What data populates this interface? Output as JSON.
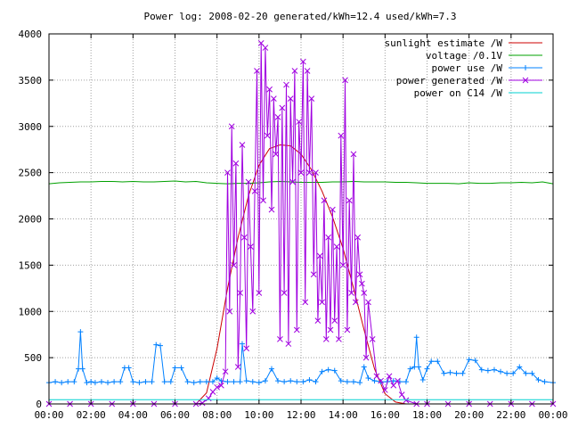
{
  "chart_data": {
    "type": "line",
    "title": "Power log: 2008-02-20 generated/kWh=12.4 used/kWh=7.3",
    "xlabel": "",
    "ylabel": "",
    "xlim": [
      0,
      24
    ],
    "ylim": [
      0,
      4000
    ],
    "x_ticks": [
      "00:00",
      "02:00",
      "04:00",
      "06:00",
      "08:00",
      "10:00",
      "12:00",
      "14:00",
      "16:00",
      "18:00",
      "20:00",
      "22:00",
      "00:00"
    ],
    "y_ticks": [
      "0",
      "500",
      "1000",
      "1500",
      "2000",
      "2500",
      "3000",
      "3500",
      "4000"
    ],
    "y_tick_values": [
      0,
      500,
      1000,
      1500,
      2000,
      2500,
      3000,
      3500,
      4000
    ],
    "grid": true,
    "legend_position": "top-right",
    "series": [
      {
        "name": "sunlight estimate /W",
        "color": "#cc0000",
        "marker": "none",
        "x": [
          0,
          7.0,
          7.5,
          8.0,
          8.5,
          9.0,
          9.5,
          10.0,
          10.5,
          11.0,
          11.5,
          12.0,
          12.5,
          13.0,
          13.5,
          14.0,
          14.5,
          15.0,
          15.5,
          16.0,
          16.5,
          17.0,
          24
        ],
        "y": [
          0,
          0,
          120,
          600,
          1250,
          1800,
          2250,
          2580,
          2760,
          2800,
          2790,
          2700,
          2530,
          2300,
          2020,
          1680,
          1250,
          800,
          380,
          110,
          20,
          0,
          0
        ]
      },
      {
        "name": "voltage /0.1V",
        "color": "#00a000",
        "marker": "none",
        "x": [
          0,
          0.5,
          1.0,
          1.5,
          2.0,
          2.5,
          3.0,
          3.5,
          4.0,
          4.5,
          5.0,
          5.5,
          6.0,
          6.5,
          7.0,
          7.5,
          8.0,
          8.5,
          9.0,
          9.5,
          10.0,
          10.5,
          11.0,
          11.5,
          12.0,
          12.5,
          13.0,
          13.5,
          14.0,
          14.5,
          15.0,
          15.5,
          16.0,
          16.5,
          17.0,
          17.5,
          18.0,
          18.5,
          19.0,
          19.5,
          20.0,
          20.5,
          21.0,
          21.5,
          22.0,
          22.5,
          23.0,
          23.5,
          24.0
        ],
        "y": [
          2380,
          2390,
          2395,
          2400,
          2400,
          2405,
          2405,
          2400,
          2405,
          2400,
          2400,
          2405,
          2410,
          2400,
          2405,
          2390,
          2385,
          2380,
          2385,
          2385,
          2390,
          2400,
          2405,
          2400,
          2395,
          2395,
          2395,
          2400,
          2400,
          2405,
          2400,
          2400,
          2400,
          2395,
          2395,
          2390,
          2385,
          2385,
          2385,
          2380,
          2390,
          2385,
          2385,
          2390,
          2390,
          2395,
          2390,
          2400,
          2380
        ]
      },
      {
        "name": "power use /W",
        "color": "#0080ff",
        "marker": "plus",
        "x": [
          0,
          0.3,
          0.6,
          0.9,
          1.2,
          1.4,
          1.5,
          1.6,
          1.8,
          2.0,
          2.2,
          2.5,
          2.8,
          3.1,
          3.4,
          3.6,
          3.8,
          4.0,
          4.3,
          4.6,
          4.9,
          5.1,
          5.3,
          5.5,
          5.8,
          6.0,
          6.3,
          6.6,
          6.9,
          7.2,
          7.5,
          7.8,
          8.0,
          8.2,
          8.5,
          8.8,
          9.1,
          9.2,
          9.4,
          9.7,
          10.0,
          10.3,
          10.6,
          10.9,
          11.2,
          11.5,
          11.8,
          12.1,
          12.4,
          12.7,
          13.0,
          13.3,
          13.6,
          13.9,
          14.2,
          14.5,
          14.8,
          15.0,
          15.2,
          15.5,
          15.8,
          16.1,
          16.4,
          16.7,
          17.0,
          17.2,
          17.4,
          17.5,
          17.6,
          17.8,
          18.0,
          18.2,
          18.5,
          18.8,
          19.1,
          19.4,
          19.7,
          20.0,
          20.3,
          20.6,
          20.9,
          21.2,
          21.5,
          21.8,
          22.1,
          22.4,
          22.7,
          23.0,
          23.3,
          23.6,
          24.0
        ],
        "y": [
          230,
          240,
          230,
          240,
          240,
          380,
          780,
          380,
          230,
          240,
          230,
          240,
          230,
          240,
          240,
          390,
          390,
          240,
          230,
          240,
          240,
          640,
          630,
          240,
          240,
          390,
          390,
          240,
          230,
          240,
          240,
          240,
          280,
          250,
          240,
          240,
          240,
          650,
          250,
          240,
          230,
          250,
          380,
          250,
          240,
          250,
          240,
          240,
          260,
          240,
          350,
          370,
          360,
          250,
          240,
          240,
          230,
          400,
          280,
          250,
          240,
          240,
          250,
          240,
          240,
          380,
          400,
          720,
          400,
          260,
          380,
          460,
          460,
          330,
          340,
          330,
          330,
          480,
          470,
          370,
          360,
          370,
          350,
          330,
          330,
          400,
          330,
          330,
          260,
          240,
          230
        ]
      },
      {
        "name": "power generated /W",
        "color": "#a000e0",
        "marker": "cross",
        "x": [
          0,
          1,
          2,
          3,
          4,
          5,
          6,
          7.0,
          7.3,
          7.6,
          7.8,
          8.0,
          8.2,
          8.4,
          8.5,
          8.6,
          8.7,
          8.8,
          8.9,
          9.0,
          9.1,
          9.2,
          9.3,
          9.4,
          9.5,
          9.6,
          9.7,
          9.8,
          9.9,
          10.0,
          10.1,
          10.2,
          10.3,
          10.4,
          10.5,
          10.6,
          10.7,
          10.8,
          10.9,
          11.0,
          11.1,
          11.2,
          11.3,
          11.4,
          11.5,
          11.6,
          11.7,
          11.8,
          11.9,
          12.0,
          12.1,
          12.2,
          12.3,
          12.4,
          12.5,
          12.6,
          12.7,
          12.8,
          12.9,
          13.0,
          13.1,
          13.2,
          13.3,
          13.4,
          13.5,
          13.6,
          13.7,
          13.8,
          13.9,
          14.0,
          14.1,
          14.2,
          14.3,
          14.4,
          14.5,
          14.6,
          14.7,
          14.8,
          14.9,
          15.0,
          15.1,
          15.2,
          15.4,
          15.6,
          15.8,
          16.0,
          16.2,
          16.4,
          16.6,
          16.8,
          17.0,
          17.5,
          18,
          19,
          20,
          21,
          22,
          23,
          24
        ],
        "y": [
          0,
          0,
          0,
          0,
          0,
          0,
          0,
          0,
          10,
          60,
          130,
          180,
          200,
          350,
          2500,
          1000,
          3000,
          1500,
          2600,
          400,
          1200,
          2800,
          1800,
          600,
          2400,
          1700,
          1000,
          2300,
          3600,
          1200,
          3900,
          2200,
          3850,
          2900,
          3400,
          2100,
          3300,
          2700,
          3100,
          700,
          3200,
          1200,
          3450,
          650,
          3300,
          2400,
          3600,
          800,
          3050,
          2500,
          3700,
          1100,
          3600,
          2500,
          3300,
          1400,
          2500,
          900,
          1600,
          1100,
          2200,
          700,
          1800,
          800,
          2100,
          900,
          1700,
          700,
          2900,
          1500,
          3500,
          800,
          2200,
          1200,
          2700,
          1100,
          1800,
          1400,
          1300,
          1200,
          500,
          1100,
          700,
          300,
          250,
          150,
          300,
          200,
          250,
          100,
          40,
          0,
          0,
          0,
          0,
          0,
          0,
          0,
          0
        ]
      },
      {
        "name": "power on C14 /W",
        "color": "#00d0d0",
        "marker": "none",
        "x": [
          0,
          24
        ],
        "y": [
          45,
          45
        ]
      }
    ]
  }
}
